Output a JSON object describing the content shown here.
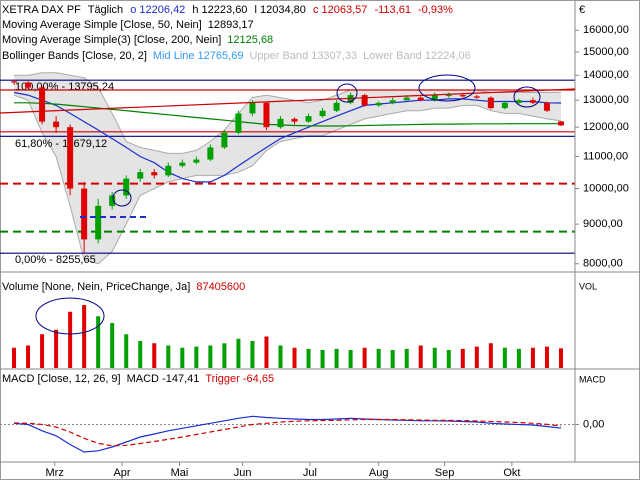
{
  "header": {
    "symbol": "XETRA DAX PF",
    "period": "Täglich",
    "open": "o 12206,42",
    "high": "h 12223,60",
    "low": "l 12034,80",
    "close": "c 12063,57",
    "change": "-113,61",
    "change_pct": "-0,93%",
    "currency": "€"
  },
  "chart_data": [
    {
      "type": "candlestick",
      "log_scale": true,
      "grid": false,
      "x": [
        1,
        2,
        3,
        4,
        5,
        6,
        7,
        8,
        9,
        10,
        11,
        12,
        13,
        14,
        15,
        16,
        17,
        18,
        19,
        20,
        21,
        22,
        23,
        24,
        25,
        26,
        27,
        28,
        29,
        30,
        31,
        32,
        33,
        34,
        35,
        36,
        37,
        38,
        39,
        40
      ],
      "xlim": [
        0,
        41
      ],
      "open": [
        13750,
        13700,
        13500,
        12200,
        12000,
        10000,
        8600,
        9500,
        9800,
        10300,
        10500,
        10400,
        10700,
        10800,
        10900,
        11300,
        11800,
        12500,
        12900,
        12000,
        12300,
        12200,
        12400,
        12600,
        12900,
        13200,
        12800,
        12900,
        13000,
        13100,
        13000,
        13200,
        13200,
        13150,
        13100,
        12700,
        12900,
        13000,
        12900,
        12206.42
      ],
      "high": [
        13800,
        13750,
        13550,
        12400,
        12100,
        10200,
        9700,
        9900,
        10400,
        10600,
        10600,
        10800,
        10900,
        11000,
        11400,
        11900,
        12600,
        13000,
        12950,
        12400,
        12350,
        12500,
        12700,
        13000,
        13300,
        13250,
        12950,
        13100,
        13200,
        13150,
        13300,
        13300,
        13250,
        13200,
        13150,
        12950,
        13050,
        13100,
        12950,
        12223.6
      ],
      "low": [
        13600,
        13450,
        12100,
        11800,
        9800,
        8255.65,
        8500,
        9400,
        9700,
        10200,
        10300,
        10350,
        10650,
        10750,
        10850,
        11250,
        11750,
        12400,
        11900,
        11950,
        12100,
        12150,
        12350,
        12550,
        12850,
        12750,
        12750,
        12850,
        13000,
        12950,
        12950,
        13100,
        13100,
        13050,
        12650,
        12650,
        12850,
        12850,
        12550,
        12034.8
      ],
      "close": [
        13700,
        13500,
        12200,
        12000,
        10000,
        8600,
        9500,
        9800,
        10300,
        10500,
        10400,
        10700,
        10800,
        10900,
        11300,
        11800,
        12500,
        12900,
        12000,
        12300,
        12200,
        12400,
        12600,
        12900,
        13200,
        12800,
        12900,
        13000,
        13100,
        13000,
        13200,
        13200,
        13150,
        13100,
        12700,
        12900,
        13000,
        12900,
        12600,
        12063.57
      ],
      "up_color": "#00a000",
      "down_color": "#e00000",
      "series": [
        {
          "name": "Moving Average Simple [Close, 50, Nein]",
          "last_label": "12893,17",
          "color": "#1a2fd0",
          "values": [
            13300,
            13200,
            13000,
            12800,
            12500,
            12200,
            11900,
            11600,
            11300,
            11000,
            10800,
            10500,
            10300,
            10200,
            10200,
            10400,
            10700,
            11000,
            11300,
            11600,
            11800,
            12000,
            12200,
            12400,
            12600,
            12800,
            12850,
            12900,
            12950,
            13000,
            13000,
            13050,
            13050,
            13000,
            12950,
            12950,
            12950,
            12950,
            12900,
            12893.17
          ]
        },
        {
          "name": "Moving Average Simple(3) [Close, 200, Nein]",
          "last_label": "12125,68",
          "color": "#008000",
          "values": [
            12900,
            12900,
            12880,
            12850,
            12800,
            12750,
            12700,
            12650,
            12600,
            12550,
            12500,
            12450,
            12400,
            12350,
            12300,
            12250,
            12200,
            12150,
            12100,
            12080,
            12060,
            12050,
            12040,
            12040,
            12050,
            12060,
            12070,
            12080,
            12090,
            12100,
            12110,
            12110,
            12115,
            12120,
            12120,
            12120,
            12125,
            12125,
            12125,
            12125.68
          ]
        }
      ],
      "bands": {
        "name": "Bollinger Bands [Close, 20, 2]",
        "mid_label": "Mid Line 12765,69",
        "mid_color": "#3399ff",
        "fill": "#e4e4e4",
        "upper": {
          "label": "Upper Band 13307,33",
          "values": [
            14000,
            14000,
            14100,
            14100,
            14000,
            13900,
            13500,
            12500,
            11500,
            11300,
            11200,
            11100,
            11100,
            11200,
            11500,
            11900,
            12500,
            13100,
            13200,
            13100,
            13000,
            12900,
            13000,
            13200,
            13400,
            13400,
            13400,
            13400,
            13400,
            13400,
            13400,
            13400,
            13400,
            13400,
            13300,
            13300,
            13300,
            13300,
            13300,
            13307.33
          ]
        },
        "lower": {
          "label": "Lower Band 12224,06",
          "values": [
            13200,
            13000,
            11800,
            11000,
            9500,
            8100,
            8000,
            8300,
            9000,
            9800,
            10000,
            10200,
            10300,
            10400,
            10400,
            10400,
            10500,
            10700,
            11200,
            11500,
            11600,
            11700,
            11700,
            11900,
            12100,
            12300,
            12400,
            12500,
            12600,
            12600,
            12700,
            12700,
            12800,
            12800,
            12600,
            12500,
            12500,
            12400,
            12300,
            12224.06
          ]
        }
      },
      "levels": [
        {
          "value": 13795.24,
          "label": "100,00% - 13795,24",
          "color": "#000080"
        },
        {
          "value": 11679.12,
          "label": "61,80% - 11679,12",
          "color": "#000080"
        },
        {
          "value": 8255.65,
          "label": "0,00% - 8255,65",
          "color": "#000080"
        },
        {
          "value": 13400,
          "color": "#d00000"
        },
        {
          "value": 11835,
          "color": "#d00000"
        },
        {
          "value": 10150,
          "color": "#d00000",
          "dashed": true
        },
        {
          "value": 8800,
          "color": "#008000",
          "dashed": true
        }
      ],
      "ylim": [
        7900,
        17400
      ],
      "yticks": [
        {
          "value": 8000,
          "label": "8000,00"
        },
        {
          "value": 9000,
          "label": "9000,00"
        },
        {
          "value": 10000,
          "label": "10000,00"
        },
        {
          "value": 11000,
          "label": "11000,00"
        },
        {
          "value": 12000,
          "label": "12000,00"
        },
        {
          "value": 13000,
          "label": "13000,00"
        },
        {
          "value": 14000,
          "label": "14000,00"
        },
        {
          "value": 15000,
          "label": "15000,00"
        },
        {
          "value": 16000,
          "label": "16000,00"
        }
      ]
    },
    {
      "type": "bar",
      "title": "Volume [None, Nein, PriceChange, Ja]",
      "axis_label": "VOL",
      "x": [
        1,
        2,
        3,
        4,
        5,
        6,
        7,
        8,
        9,
        10,
        11,
        12,
        13,
        14,
        15,
        16,
        17,
        18,
        19,
        20,
        21,
        22,
        23,
        24,
        25,
        26,
        27,
        28,
        29,
        30,
        31,
        32,
        33,
        34,
        35,
        36,
        37,
        38,
        39,
        40
      ],
      "xlim": [
        0,
        41
      ],
      "values": [
        90000000,
        100000000,
        150000000,
        170000000,
        250000000,
        280000000,
        230000000,
        200000000,
        150000000,
        120000000,
        110000000,
        100000000,
        90000000,
        95000000,
        100000000,
        110000000,
        130000000,
        120000000,
        140000000,
        100000000,
        90000000,
        85000000,
        80000000,
        85000000,
        80000000,
        90000000,
        85000000,
        80000000,
        85000000,
        100000000,
        90000000,
        80000000,
        85000000,
        95000000,
        110000000,
        90000000,
        85000000,
        90000000,
        95000000,
        87405600
      ],
      "ylim": [
        0,
        320000000
      ]
    },
    {
      "type": "line",
      "title": "MACD [Close, 12, 26, 9]",
      "axis_label": "MACD",
      "x": [
        1,
        2,
        3,
        4,
        5,
        6,
        7,
        8,
        9,
        10,
        11,
        12,
        13,
        14,
        15,
        16,
        17,
        18,
        19,
        20,
        21,
        22,
        23,
        24,
        25,
        26,
        27,
        28,
        29,
        30,
        31,
        32,
        33,
        34,
        35,
        36,
        37,
        38,
        39,
        40
      ],
      "xlim": [
        0,
        41
      ],
      "xticks": [
        {
          "value": 3.9,
          "label": "Mrz"
        },
        {
          "value": 8.7,
          "label": "Apr"
        },
        {
          "value": 12.8,
          "label": "Mai"
        },
        {
          "value": 17.3,
          "label": "Jun"
        },
        {
          "value": 22.1,
          "label": "Jul"
        },
        {
          "value": 27,
          "label": "Aug"
        },
        {
          "value": 31.7,
          "label": "Sep"
        },
        {
          "value": 36.5,
          "label": "Okt"
        }
      ],
      "series": [
        {
          "name": "MACD",
          "last_label": "MACD -147,41",
          "color": "#1a2fd0",
          "dashed": false,
          "values": [
            50,
            0,
            -250,
            -450,
            -800,
            -1100,
            -1050,
            -900,
            -700,
            -500,
            -380,
            -250,
            -150,
            -50,
            50,
            150,
            250,
            330,
            280,
            250,
            220,
            200,
            200,
            220,
            250,
            220,
            200,
            180,
            170,
            150,
            150,
            140,
            120,
            100,
            50,
            20,
            0,
            -20,
            -80,
            -147.41
          ]
        },
        {
          "name": "Trigger",
          "last_label": "Trigger -64,65",
          "color": "#d00000",
          "dashed": true,
          "values": [
            60,
            50,
            0,
            -100,
            -300,
            -550,
            -750,
            -850,
            -830,
            -760,
            -680,
            -590,
            -500,
            -400,
            -300,
            -200,
            -100,
            0,
            50,
            100,
            130,
            150,
            160,
            170,
            190,
            200,
            200,
            200,
            190,
            180,
            170,
            165,
            155,
            140,
            120,
            100,
            80,
            50,
            10,
            -64.65
          ]
        }
      ],
      "ylim": [
        -1500,
        2100
      ],
      "yticks": [
        {
          "value": 0,
          "label": "0,00"
        }
      ]
    }
  ]
}
